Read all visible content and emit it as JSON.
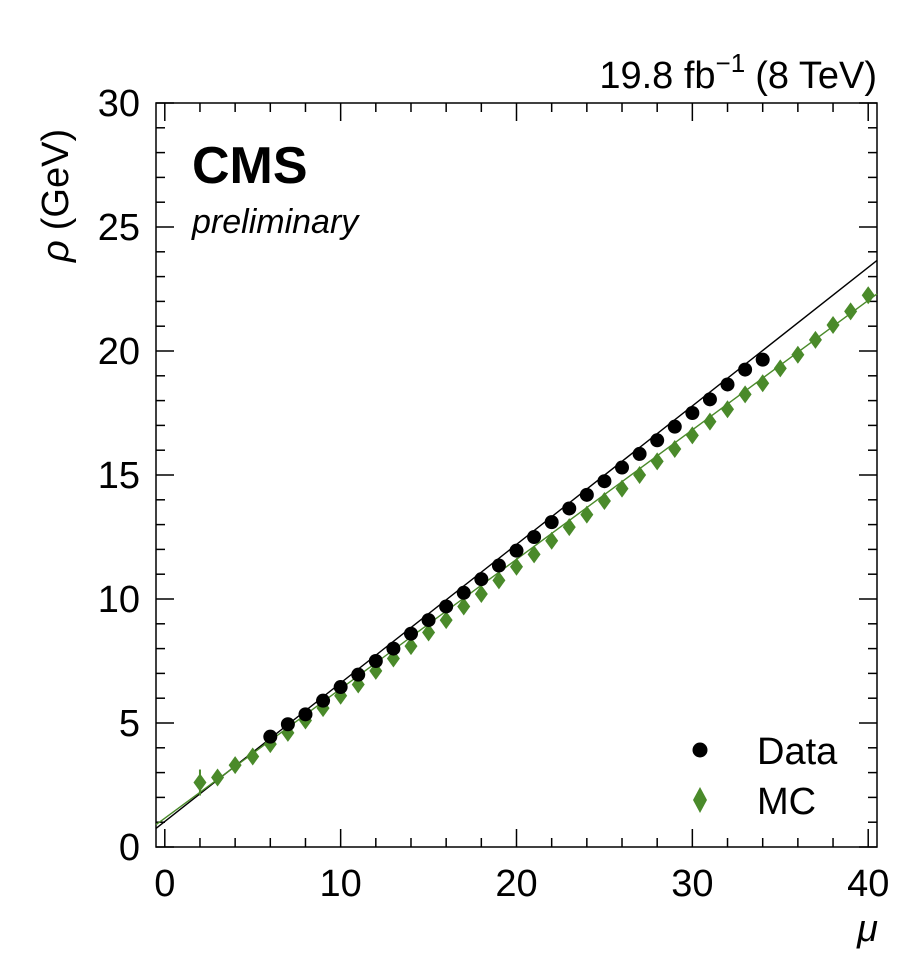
{
  "chart_data": {
    "type": "scatter",
    "annotation_lumi": "19.8 fb",
    "annotation_lumi_exp": "−1",
    "annotation_energy": "(8 TeV)",
    "experiment_label": "CMS",
    "status_label": "preliminary",
    "xlabel": "μ",
    "ylabel_symbol": "ρ",
    "ylabel_unit": "(GeV)",
    "xlim": [
      -0.5,
      40.5
    ],
    "ylim": [
      0,
      30
    ],
    "x_ticks": [
      0,
      10,
      20,
      30,
      40
    ],
    "x_tick_labels": [
      "0",
      "10",
      "20",
      "30",
      "40"
    ],
    "y_ticks": [
      0,
      5,
      10,
      15,
      20,
      25,
      30
    ],
    "y_tick_labels": [
      "0",
      "5",
      "10",
      "15",
      "20",
      "25",
      "30"
    ],
    "legend_position": "bottom-right",
    "series": [
      {
        "name": "Data",
        "marker": "circle",
        "color": "#000000",
        "x": [
          6,
          7,
          8,
          9,
          10,
          11,
          12,
          13,
          14,
          15,
          16,
          17,
          18,
          19,
          20,
          21,
          22,
          23,
          24,
          25,
          26,
          27,
          28,
          29,
          30,
          31,
          32,
          33,
          34
        ],
        "y": [
          4.45,
          4.95,
          5.35,
          5.9,
          6.45,
          6.95,
          7.5,
          8.0,
          8.6,
          9.15,
          9.7,
          10.25,
          10.8,
          11.35,
          11.95,
          12.5,
          13.1,
          13.65,
          14.2,
          14.75,
          15.3,
          15.85,
          16.4,
          16.95,
          17.5,
          18.05,
          18.65,
          19.25,
          19.65
        ],
        "fit": {
          "x0": -0.5,
          "y0": 0.75,
          "x1": 40.5,
          "y1": 23.65
        }
      },
      {
        "name": "MC",
        "marker": "diamond",
        "color": "#4a8a2a",
        "x": [
          2,
          3,
          4,
          5,
          6,
          7,
          8,
          9,
          10,
          11,
          12,
          13,
          14,
          15,
          16,
          17,
          18,
          19,
          20,
          21,
          22,
          23,
          24,
          25,
          26,
          27,
          28,
          29,
          30,
          31,
          32,
          33,
          34,
          35,
          36,
          37,
          38,
          39,
          40
        ],
        "y": [
          2.6,
          2.8,
          3.3,
          3.65,
          4.15,
          4.6,
          5.1,
          5.6,
          6.1,
          6.55,
          7.1,
          7.6,
          8.1,
          8.65,
          9.15,
          9.7,
          10.2,
          10.75,
          11.3,
          11.8,
          12.35,
          12.9,
          13.4,
          13.95,
          14.45,
          15.0,
          15.55,
          16.05,
          16.6,
          17.15,
          17.65,
          18.25,
          18.7,
          19.3,
          19.85,
          20.45,
          21.05,
          21.6,
          22.25
        ],
        "fit": {
          "x0": -0.5,
          "y0": 0.9,
          "x1": 40.5,
          "y1": 22.3
        }
      }
    ]
  }
}
